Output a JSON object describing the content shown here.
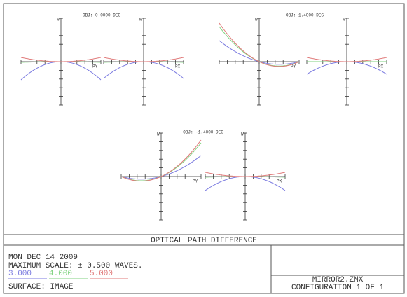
{
  "fields": [
    {
      "title": "OBJ: 0.0000 DEG",
      "py": {
        "w": "W",
        "axis": "PY"
      },
      "px": {
        "w": "W",
        "axis": "PX"
      }
    },
    {
      "title": "OBJ: 1.4000 DEG",
      "py": {
        "w": "W",
        "axis": "PY"
      },
      "px": {
        "w": "W",
        "axis": "PX"
      }
    },
    {
      "title": "OBJ: -1.4000 DEG",
      "py": {
        "w": "W",
        "axis": "PY"
      },
      "px": {
        "w": "W",
        "axis": "PX"
      }
    }
  ],
  "footer": {
    "title": "OPTICAL PATH DIFFERENCE",
    "date": "MON DEC 14 2009",
    "scale": "MAXIMUM SCALE: ± 0.500 WAVES.",
    "wavelengths": [
      {
        "label": "3.000",
        "color": "#7b7be0"
      },
      {
        "label": "4.000",
        "color": "#7fd27f"
      },
      {
        "label": "5.000",
        "color": "#e07a7a"
      }
    ],
    "surface": "SURFACE: IMAGE",
    "file": "MIRROR2.ZMX",
    "configuration": "CONFIGURATION 1 OF 1"
  }
}
